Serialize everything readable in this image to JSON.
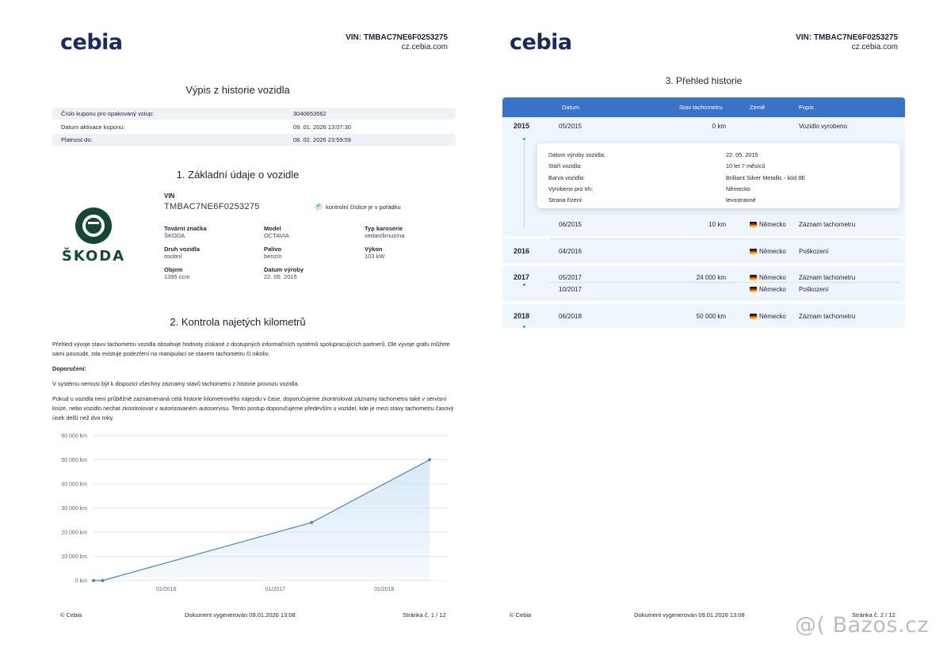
{
  "page1": {
    "logo": "cebia",
    "vin_header": "VIN: TMBAC7NE6F0253275",
    "website": "cz.cebia.com",
    "title": "Výpis z historie vozidla",
    "coupon_rows": [
      {
        "key": "Číslo kuponu pro opakovaný vstup:",
        "value": "3040653562"
      },
      {
        "key": "Datum aktivace kuponu:",
        "value": "09. 01. 2026 13:07:30"
      },
      {
        "key": "Platnost do:",
        "value": "08. 02. 2026 23:59:59"
      }
    ],
    "section1_title": "1. Základní údaje o vozidle",
    "brand_wordmark": "ŠKODA",
    "vin_label": "VIN",
    "vin_value": "TMBAC7NE6F0253275",
    "check_text": "kontrolní číslice je v pořádku",
    "specs": [
      {
        "label": "Tovární značka",
        "value": "ŠKODA"
      },
      {
        "label": "Model",
        "value": "OCTAVIA"
      },
      {
        "label": "Typ karoserie",
        "value": "sedan/limuzína"
      },
      {
        "label": "Druh vozidla",
        "value": "osobní"
      },
      {
        "label": "Palivo",
        "value": "benzín"
      },
      {
        "label": "Výkon",
        "value": "103 kW"
      },
      {
        "label": "Objem",
        "value": "1395 ccm"
      },
      {
        "label": "Datum výroby",
        "value": "22. 05. 2015"
      }
    ],
    "section2_title": "2. Kontrola najetých kilometrů",
    "para1": "Přehled vývoje stavu tachometru vozidla obsahuje hodnoty získané z dostupných informačních systémů spolupracujících partnerů. Dle vývoje grafu můžete sami posoudit, zda existuje podezření na manipulaci se stavem tachometru či nikoliv.",
    "recommend_label": "Doporučení:",
    "para2": "V systému nemusí být k dispozici všechny záznamy stavů tachometru z historie provozu vozidla.",
    "para3": "Pokud u vozidla není průběžně zaznamenaná celá historie kilometrového nájezdu v čase, doporučujeme zkontrolovat záznamy tachometru také v servisní knize, nebo vozidlo nechat zkontrolovat v autorizovaném autoservisu. Tento postup doporučujeme především u vozidel, kde je mezi stavy tachometru časový úsek delší než dva roky.",
    "footer_left": "© Cebia",
    "footer_center": "Dokument vygenerován 09.01.2026 13:08",
    "footer_right": "Stránka č. 1 / 12"
  },
  "chart_data": {
    "type": "area",
    "title": "",
    "xlabel": "",
    "ylabel": "",
    "ylim": [
      0,
      60000
    ],
    "y_ticks": [
      "0 km",
      "10 000 km",
      "20 000 km",
      "30 000 km",
      "40 000 km",
      "50 000 km",
      "60 000 km"
    ],
    "x_ticks": [
      "01/2016",
      "01/2017",
      "01/2018"
    ],
    "series": [
      {
        "points": [
          {
            "date": "2015-05",
            "km": 0
          },
          {
            "date": "2015-06",
            "km": 10
          },
          {
            "date": "2017-05",
            "km": 24000
          },
          {
            "date": "2018-06",
            "km": 50000
          }
        ]
      }
    ],
    "grid": true,
    "colors": {
      "line": "#4a86c8",
      "fill": "#d6e8f7"
    }
  },
  "page2": {
    "logo": "cebia",
    "vin_header": "VIN: TMBAC7NE6F0253275",
    "website": "cz.cebia.com",
    "title": "3. Přehled historie",
    "columns": [
      "Datum",
      "Stav tachometru",
      "Země",
      "Popis"
    ],
    "popup": [
      {
        "key": "Datum výroby vozidla:",
        "value": "22. 05. 2015"
      },
      {
        "key": "Stáří vozidla:",
        "value": "10 let 7 měsíců"
      },
      {
        "key": "Barva vozidla:",
        "value": "Brilliant Silver Metallic - kód 8E"
      },
      {
        "key": "Vyrobeno pro trh:",
        "value": "Německo"
      },
      {
        "key": "Strana řízení:",
        "value": "levostranné"
      }
    ],
    "years": [
      {
        "year": "2015",
        "rows": [
          {
            "date": "05/2015",
            "km": "0 km",
            "country": "",
            "desc": "Vozidlo vyrobeno"
          },
          {
            "date": "06/2015",
            "km": "10 km",
            "country": "Německo",
            "desc": "Záznam tachometru"
          }
        ]
      },
      {
        "year": "2016",
        "rows": [
          {
            "date": "04/2016",
            "km": "",
            "country": "Německo",
            "desc": "Poškození"
          }
        ]
      },
      {
        "year": "2017",
        "rows": [
          {
            "date": "05/2017",
            "km": "24 000 km",
            "country": "Německo",
            "desc": "Záznam tachometru"
          },
          {
            "date": "10/2017",
            "km": "",
            "country": "Německo",
            "desc": "Poškození"
          }
        ]
      },
      {
        "year": "2018",
        "rows": [
          {
            "date": "06/2018",
            "km": "50 000 km",
            "country": "Německo",
            "desc": "Záznam tachometru"
          }
        ]
      }
    ],
    "footer_left": "© Cebia",
    "footer_center": "Dokument vygenerován 09.01.2026 13:08",
    "footer_right": "Stránka č. 2 / 12"
  },
  "watermark": "@( Bazos.cz"
}
